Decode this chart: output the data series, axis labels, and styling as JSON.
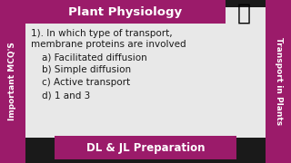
{
  "bg_color": "#1a1a1a",
  "magenta": "#9B1B6A",
  "white": "#FFFFFF",
  "black": "#000000",
  "text_color": "#1a1a1a",
  "title": "Plant Physiology",
  "bottom_bar": "DL & JL Preparation",
  "left_bar": "Important MCQ'S",
  "right_bar": "Transport in Plants",
  "question_line1": "1). In which type of transport,",
  "question_line2": "membrane proteins are involved",
  "options": [
    "a) Facilitated diffusion",
    "b) Simple diffusion",
    "c) Active transport",
    "d) 1 and 3"
  ],
  "title_fontsize": 9.5,
  "bar_fontsize": 6.5,
  "question_fontsize": 7.5,
  "option_fontsize": 7.5,
  "content_bg": "#e8e8e8"
}
